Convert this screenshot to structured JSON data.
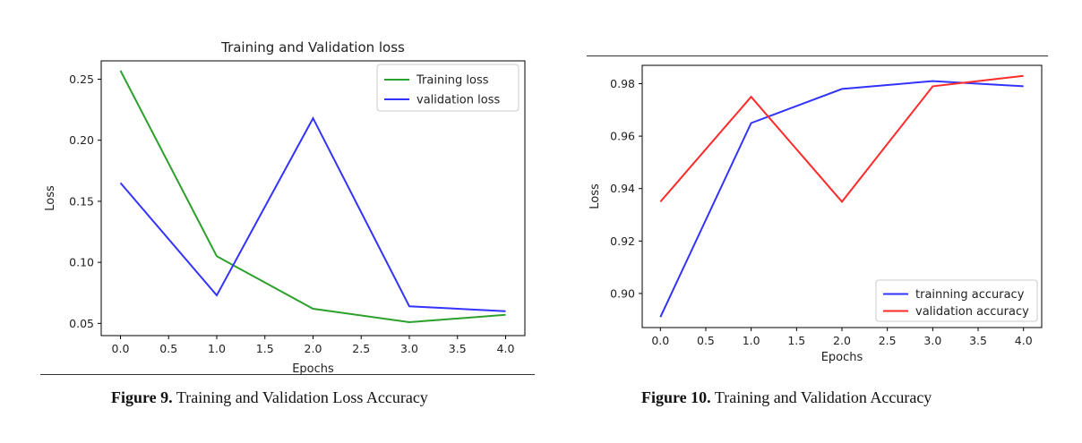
{
  "figure9": {
    "caption_label": "Figure 9.",
    "caption_text": " Training and Validation Loss Accuracy"
  },
  "figure10": {
    "caption_label": "Figure 10.",
    "caption_text": " Training and Validation Accuracy"
  },
  "chart_data": [
    {
      "type": "line",
      "title": "Training and Validation loss",
      "xlabel": "Epochs",
      "ylabel": "Loss",
      "x": [
        0,
        1,
        2,
        3,
        4
      ],
      "xlim": [
        -0.2,
        4.2
      ],
      "ylim": [
        0.04,
        0.265
      ],
      "xticks": [
        0.0,
        0.5,
        1.0,
        1.5,
        2.0,
        2.5,
        3.0,
        3.5,
        4.0
      ],
      "xtick_labels": [
        "0.0",
        "0.5",
        "1.0",
        "1.5",
        "2.0",
        "2.5",
        "3.0",
        "3.5",
        "4.0"
      ],
      "yticks": [
        0.05,
        0.1,
        0.15,
        0.2,
        0.25
      ],
      "ytick_labels": [
        "0.05",
        "0.10",
        "0.15",
        "0.20",
        "0.25"
      ],
      "legend_position": "top-right",
      "grid": false,
      "series": [
        {
          "name": "Training loss",
          "color": "#2ca02c",
          "values": [
            0.257,
            0.105,
            0.062,
            0.051,
            0.057
          ]
        },
        {
          "name": "validation loss",
          "color": "#3333ff",
          "values": [
            0.165,
            0.073,
            0.218,
            0.064,
            0.06
          ]
        }
      ]
    },
    {
      "type": "line",
      "title": "",
      "xlabel": "Epochs",
      "ylabel": "Loss",
      "x": [
        0,
        1,
        2,
        3,
        4
      ],
      "xlim": [
        -0.2,
        4.2
      ],
      "ylim": [
        0.887,
        0.987
      ],
      "xticks": [
        0.0,
        0.5,
        1.0,
        1.5,
        2.0,
        2.5,
        3.0,
        3.5,
        4.0
      ],
      "xtick_labels": [
        "0.0",
        "0.5",
        "1.0",
        "1.5",
        "2.0",
        "2.5",
        "3.0",
        "3.5",
        "4.0"
      ],
      "yticks": [
        0.9,
        0.92,
        0.94,
        0.96,
        0.98
      ],
      "ytick_labels": [
        "0.90",
        "0.92",
        "0.94",
        "0.96",
        "0.98"
      ],
      "legend_position": "bottom-right",
      "grid": false,
      "series": [
        {
          "name": "trainning accuracy",
          "color": "#3333ff",
          "values": [
            0.891,
            0.965,
            0.978,
            0.981,
            0.979
          ]
        },
        {
          "name": "validation accuracy",
          "color": "#ff2a2a",
          "values": [
            0.935,
            0.975,
            0.935,
            0.979,
            0.983
          ]
        }
      ]
    }
  ]
}
